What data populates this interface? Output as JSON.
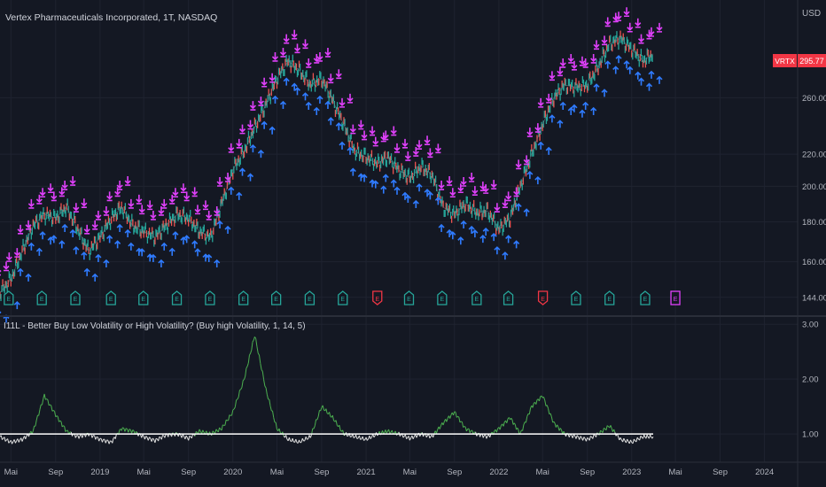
{
  "header": {
    "symbol_title": "Vertex Pharmaceuticals Incorporated, 1T, NASDAQ",
    "currency": "USD"
  },
  "price_badge": {
    "ticker": "VRTX",
    "value": "295.77",
    "color": "#f23645"
  },
  "indicator": {
    "title": "I11L - Better Buy Low Volatility or High Volatility? (Buy high Volatility, 1, 14, 5)"
  },
  "chart_data": [
    {
      "type": "line",
      "title": "Vertex Pharmaceuticals Incorporated, 1T, NASDAQ",
      "y_axis": {
        "label": "USD",
        "scale": "log",
        "ticks": [
          144,
          160,
          180,
          200,
          220,
          260
        ],
        "range": [
          138,
          340
        ]
      },
      "x_axis": {
        "ticks": [
          "Mai",
          "Sep",
          "2019",
          "Mai",
          "Sep",
          "2020",
          "Mai",
          "Sep",
          "2021",
          "Mai",
          "Sep",
          "2022",
          "Mai",
          "Sep",
          "2023",
          "Mai",
          "Sep",
          "2024"
        ],
        "range": [
          "2018-04-01",
          "2024-04-01"
        ]
      },
      "series": [
        {
          "x": [
            "2018-04-01",
            "2018-05-01",
            "2018-06-01",
            "2018-07-01",
            "2018-08-01",
            "2018-09-01",
            "2018-10-01",
            "2018-11-01",
            "2018-12-01",
            "2019-01-01",
            "2019-02-01",
            "2019-03-01",
            "2019-04-01",
            "2019-05-01",
            "2019-06-01",
            "2019-07-01",
            "2019-08-01",
            "2019-09-01",
            "2019-10-01",
            "2019-11-01",
            "2019-12-01",
            "2020-01-01",
            "2020-02-01",
            "2020-03-01",
            "2020-04-01",
            "2020-05-01",
            "2020-06-01",
            "2020-07-01",
            "2020-08-01",
            "2020-09-01",
            "2020-10-01",
            "2020-11-01",
            "2020-12-01",
            "2021-01-01",
            "2021-02-01",
            "2021-03-01",
            "2021-04-01",
            "2021-05-01",
            "2021-06-01",
            "2021-07-01",
            "2021-08-01",
            "2021-09-01",
            "2021-10-01",
            "2021-11-01",
            "2021-12-01",
            "2022-01-01",
            "2022-02-01",
            "2022-03-01",
            "2022-04-01",
            "2022-05-01",
            "2022-06-01",
            "2022-07-01",
            "2022-08-01",
            "2022-09-01",
            "2022-10-01",
            "2022-11-01",
            "2022-12-01",
            "2023-01-01",
            "2023-02-01",
            "2023-03-01"
          ],
          "y": [
            146,
            152,
            165,
            178,
            184,
            182,
            188,
            176,
            165,
            172,
            182,
            188,
            178,
            175,
            172,
            178,
            184,
            182,
            175,
            172,
            190,
            210,
            222,
            238,
            255,
            275,
            290,
            282,
            270,
            275,
            258,
            240,
            222,
            218,
            214,
            218,
            210,
            205,
            212,
            207,
            188,
            184,
            190,
            185,
            186,
            176,
            182,
            200,
            220,
            240,
            260,
            270,
            268,
            270,
            285,
            305,
            310,
            300,
            290,
            296
          ]
        }
      ],
      "last_value": 295.77
    },
    {
      "type": "line",
      "title": "I11L - Better Buy Low Volatility or High Volatility? (Buy high Volatility, 1, 14, 5)",
      "y_axis": {
        "ticks": [
          1.0,
          2.0,
          3.0
        ],
        "range": [
          0.55,
          3.1
        ]
      },
      "threshold": 1.0,
      "series": [
        {
          "x": [
            "2018-04-01",
            "2018-05-01",
            "2018-06-01",
            "2018-07-01",
            "2018-08-01",
            "2018-09-01",
            "2018-10-01",
            "2018-11-01",
            "2018-12-01",
            "2019-01-01",
            "2019-02-01",
            "2019-03-01",
            "2019-04-01",
            "2019-05-01",
            "2019-06-01",
            "2019-07-01",
            "2019-08-01",
            "2019-09-01",
            "2019-10-01",
            "2019-11-01",
            "2019-12-01",
            "2020-01-01",
            "2020-02-01",
            "2020-03-01",
            "2020-04-01",
            "2020-05-01",
            "2020-06-01",
            "2020-07-01",
            "2020-08-01",
            "2020-09-01",
            "2020-10-01",
            "2020-11-01",
            "2020-12-01",
            "2021-01-01",
            "2021-02-01",
            "2021-03-01",
            "2021-04-01",
            "2021-05-01",
            "2021-06-01",
            "2021-07-01",
            "2021-08-01",
            "2021-09-01",
            "2021-10-01",
            "2021-11-01",
            "2021-12-01",
            "2022-01-01",
            "2022-02-01",
            "2022-03-01",
            "2022-04-01",
            "2022-05-01",
            "2022-06-01",
            "2022-07-01",
            "2022-08-01",
            "2022-09-01",
            "2022-10-01",
            "2022-11-01",
            "2022-12-01",
            "2023-01-01",
            "2023-02-01",
            "2023-03-01"
          ],
          "y": [
            0.95,
            0.85,
            0.9,
            1.05,
            1.7,
            1.35,
            1.05,
            0.95,
            1.0,
            0.9,
            0.85,
            1.1,
            1.05,
            0.95,
            0.88,
            0.98,
            1.0,
            0.92,
            1.05,
            1.0,
            1.1,
            1.4,
            2.0,
            2.8,
            1.8,
            1.1,
            0.9,
            0.85,
            0.95,
            1.5,
            1.3,
            1.0,
            0.95,
            0.9,
            1.0,
            1.05,
            1.0,
            0.92,
            1.0,
            0.95,
            1.2,
            1.4,
            1.1,
            1.0,
            0.95,
            1.1,
            1.3,
            1.0,
            1.5,
            1.7,
            1.2,
            1.0,
            0.95,
            0.9,
            1.0,
            1.15,
            0.9,
            0.85,
            0.95,
            0.95
          ]
        }
      ]
    }
  ]
}
